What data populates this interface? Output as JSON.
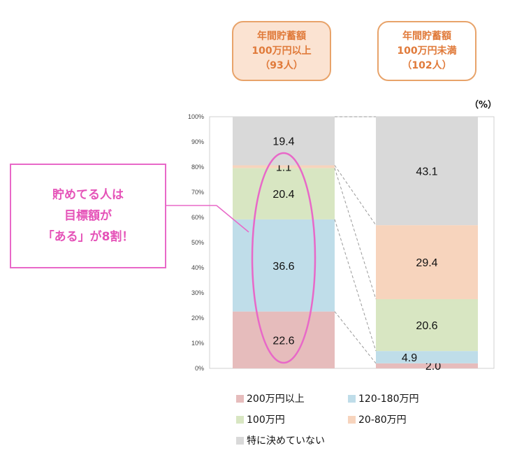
{
  "header": {
    "left": {
      "line1": "年間貯蓄額",
      "line2": "100万円以上",
      "line3": "（93人）"
    },
    "right": {
      "line1": "年間貯蓄額",
      "line2": "100万円未満",
      "line3": "（102人）"
    }
  },
  "unit_label": "（%）",
  "callout": {
    "line1": "貯めてる人は",
    "line2": "目標額が",
    "line3": "「ある」が8割！"
  },
  "chart_data": {
    "type": "bar",
    "stacked": true,
    "categories": [
      "年間貯蓄額 100万円以上（93人）",
      "年間貯蓄額 100万円未満（102人）"
    ],
    "ylim": [
      0,
      100
    ],
    "yticks": [
      "0%",
      "10%",
      "20%",
      "30%",
      "40%",
      "50%",
      "60%",
      "70%",
      "80%",
      "90%",
      "100%"
    ],
    "series": [
      {
        "name": "200万円以上",
        "color": "#e6bcbc",
        "values": [
          22.6,
          2.0
        ],
        "labels": [
          "22.6",
          "2.0"
        ]
      },
      {
        "name": "120-180万円",
        "color": "#bfdde9",
        "values": [
          36.6,
          4.9
        ],
        "labels": [
          "36.6",
          "4.9"
        ]
      },
      {
        "name": "100万円",
        "color": "#d8e6c2",
        "values": [
          20.4,
          20.6
        ],
        "labels": [
          "20.4",
          "20.6"
        ]
      },
      {
        "name": "20-80万円",
        "color": "#f7d4bd",
        "values": [
          1.1,
          29.4
        ],
        "labels": [
          "1.1",
          "29.4"
        ]
      },
      {
        "name": "特に決めていない",
        "color": "#d9d9d9",
        "values": [
          19.4,
          43.1
        ],
        "labels": [
          "19.4",
          "43.1"
        ]
      }
    ],
    "legend_position": "bottom",
    "grid": false
  }
}
